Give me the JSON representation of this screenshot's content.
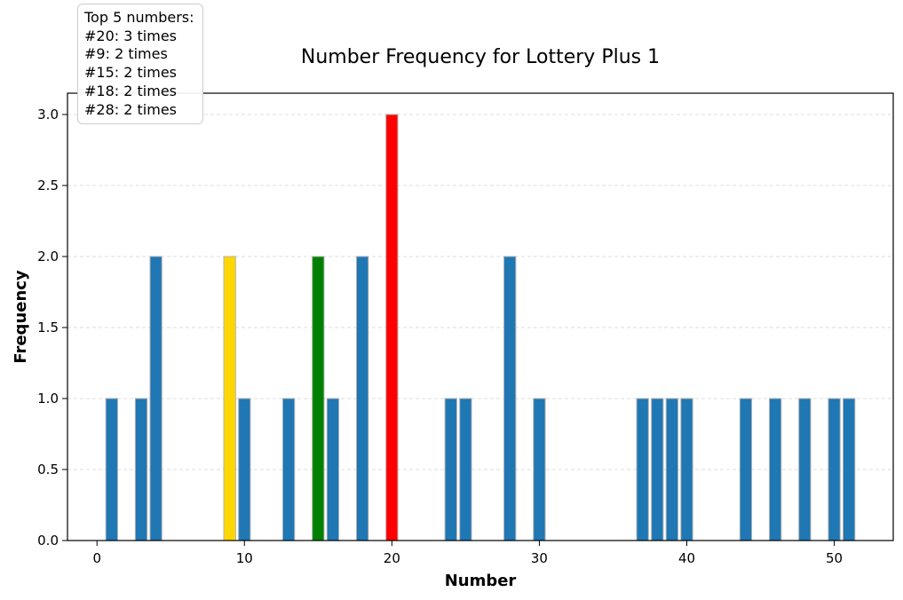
{
  "chart_data": {
    "type": "bar",
    "title": "Number Frequency for Lottery Plus 1",
    "xlabel": "Number",
    "ylabel": "Frequency",
    "xlim": [
      -2,
      54
    ],
    "ylim": [
      0,
      3.15
    ],
    "xticks": [
      "0",
      "10",
      "20",
      "30",
      "40",
      "50"
    ],
    "yticks": [
      "0.0",
      "0.5",
      "1.0",
      "1.5",
      "2.0",
      "2.5",
      "3.0"
    ],
    "grid": "horizontal dashed",
    "x": [
      1,
      3,
      4,
      9,
      10,
      13,
      15,
      16,
      18,
      20,
      24,
      25,
      28,
      30,
      37,
      38,
      39,
      40,
      44,
      46,
      48,
      50,
      51
    ],
    "values": [
      1,
      1,
      2,
      2,
      1,
      1,
      2,
      1,
      2,
      3,
      1,
      1,
      2,
      1,
      1,
      1,
      1,
      1,
      1,
      1,
      1,
      1,
      1
    ],
    "colors": {
      "default": "#1f77b4",
      "highlight": {
        "20": "#ff0000",
        "9": "#ffd700",
        "15": "#008000"
      },
      "edge": "#b0b0b0"
    },
    "annotation": {
      "heading": "Top 5 numbers:",
      "lines": [
        "#20: 3 times",
        "#9: 2 times",
        "#15: 2 times",
        "#18: 2 times",
        "#28: 2 times"
      ],
      "placement": "top-left"
    }
  }
}
